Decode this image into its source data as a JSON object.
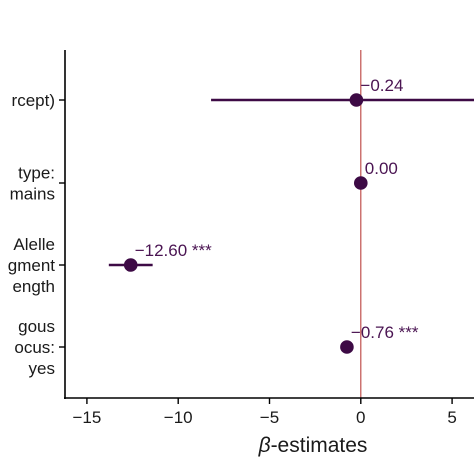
{
  "chart_data": {
    "type": "forest",
    "xlabel_symbol": "β",
    "xlabel_rest": "-estimates",
    "xlim": [
      -16.2,
      6.2
    ],
    "xticks": [
      -15,
      -10,
      -5,
      0,
      5
    ],
    "xtick_labels": [
      "−15",
      "−10",
      "−5",
      "0",
      "5"
    ],
    "reference_line": 0,
    "colors": {
      "point": "#3d0a45",
      "label": "#4a1452",
      "reference": "#c0504d",
      "axis": "#000000"
    },
    "rows": [
      {
        "label_lines": [
          "rcept)"
        ],
        "estimate": -0.24,
        "ci": [
          -8.2,
          7.0
        ],
        "value_label": "−0.24"
      },
      {
        "label_lines": [
          "type:",
          "mains"
        ],
        "estimate": 0.0,
        "ci": [
          -0.35,
          0.35
        ],
        "value_label": "0.00"
      },
      {
        "label_lines": [
          "Alelle",
          "gment",
          "ength"
        ],
        "estimate": -12.6,
        "ci": [
          -13.8,
          -11.4
        ],
        "value_label": "−12.60 ***"
      },
      {
        "label_lines": [
          "gous",
          "ocus:",
          "yes"
        ],
        "estimate": -0.76,
        "ci": [
          -0.76,
          -0.76
        ],
        "value_label": "−0.76 ***"
      }
    ]
  }
}
